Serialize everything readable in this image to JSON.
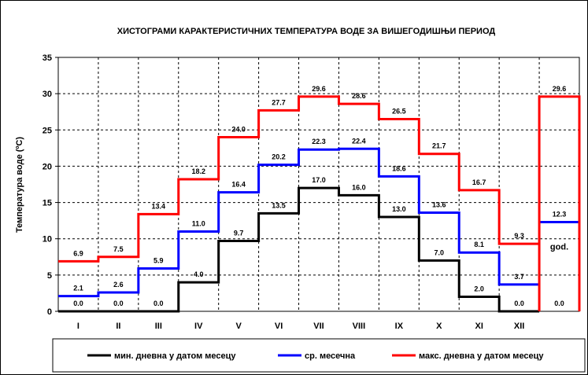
{
  "chart_data": {
    "type": "line",
    "title": "ХИСТОГРАМИ КАРАКТЕРИСТИЧНИХ ТЕМПЕРАТУРА ВОДЕ ЗА ВИШЕГОДИШЊИ ПЕРИОД",
    "ylabel": "Температура воде (ºC)",
    "xlabel": "",
    "ylim": [
      0,
      35
    ],
    "yticks": [
      0,
      5,
      10,
      15,
      20,
      25,
      30,
      35
    ],
    "categories": [
      "I",
      "II",
      "III",
      "IV",
      "V",
      "VI",
      "VII",
      "VIII",
      "IX",
      "X",
      "XI",
      "XII"
    ],
    "annual_label": "god.",
    "grid": true,
    "legend_position": "bottom",
    "series": [
      {
        "name": "мин. дневна у датом месецу",
        "color": "#000000",
        "values": [
          0.0,
          0.0,
          0.0,
          4.0,
          9.7,
          13.5,
          17.0,
          16.0,
          13.0,
          7.0,
          2.0,
          0.0
        ],
        "annual": 0.0,
        "labels": [
          "0.0",
          "0.0",
          "0.0",
          "4.0",
          "9.7",
          "13.5",
          "17.0",
          "16.0",
          "13.0",
          "7.0",
          "2.0",
          "0.0"
        ],
        "annual_label": "0.0"
      },
      {
        "name": "ср. месечна",
        "color": "#0000ff",
        "values": [
          2.1,
          2.6,
          5.9,
          11.0,
          16.4,
          20.2,
          22.3,
          22.4,
          18.6,
          13.6,
          8.1,
          3.7
        ],
        "annual": 12.3,
        "labels": [
          "2.1",
          "2.6",
          "5.9",
          "11.0",
          "16.4",
          "20.2",
          "22.3",
          "22.4",
          "18.6",
          "13.6",
          "8.1",
          "3.7"
        ],
        "annual_label": "12.3"
      },
      {
        "name": "макс. дневна у датом месецу",
        "color": "#ff0000",
        "values": [
          6.9,
          7.5,
          13.4,
          18.2,
          24.0,
          27.7,
          29.6,
          28.6,
          26.5,
          21.7,
          16.7,
          9.3
        ],
        "annual": 29.6,
        "labels": [
          "6.9",
          "7.5",
          "13.4",
          "18.2",
          "24.0",
          "27.7",
          "29.6",
          "28.6",
          "26.5",
          "21.7",
          "16.7",
          "9.3"
        ],
        "annual_label": "29.6"
      }
    ]
  }
}
